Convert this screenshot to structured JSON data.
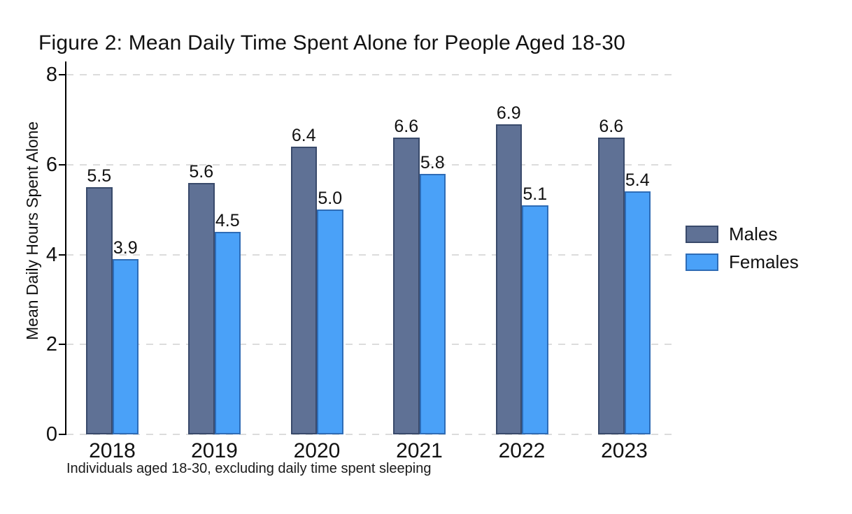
{
  "chart_data": {
    "type": "bar",
    "title": "Figure 2: Mean Daily Time Spent Alone for People Aged 18-30",
    "categories": [
      "2018",
      "2019",
      "2020",
      "2021",
      "2022",
      "2023"
    ],
    "series": [
      {
        "name": "Males",
        "color": "#5f7195",
        "border_color": "#394a6b",
        "values": [
          5.5,
          5.6,
          6.4,
          6.6,
          6.9,
          6.6
        ]
      },
      {
        "name": "Females",
        "color": "#4aa1f8",
        "border_color": "#2e6cb6",
        "values": [
          3.9,
          4.5,
          5.0,
          5.8,
          5.1,
          5.4
        ]
      }
    ],
    "xlabel": "",
    "ylabel": "Mean Daily Hours Spent Alone",
    "yticks": [
      0,
      2,
      4,
      6,
      8
    ],
    "ylim": [
      0,
      8
    ],
    "grid": "horizontal dashed gridlines at each y tick",
    "gridline_color": "#dcdcdc",
    "bar_value_labels": true,
    "legend_position": "right of plot, middle",
    "note": "Individuals aged 18-30, excluding daily time spent sleeping"
  }
}
